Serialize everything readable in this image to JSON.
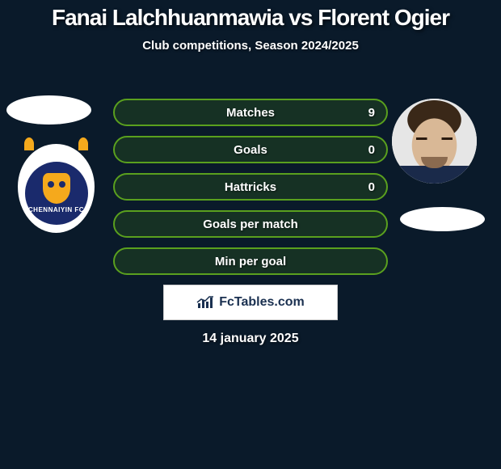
{
  "title": {
    "text": "Fanai Lalchhuanmawia vs Florent Ogier",
    "color": "#ffffff",
    "fontsize": 28
  },
  "subtitle": {
    "text": "Club competitions, Season 2024/2025",
    "color": "#ffffff",
    "fontsize": 15
  },
  "stats": {
    "border_color": "#5aa01e",
    "fill_color": "rgba(60,120,20,0.25)",
    "label_fontsize": 15,
    "value_fontsize": 15,
    "rows": [
      {
        "label": "Matches",
        "value": "9"
      },
      {
        "label": "Goals",
        "value": "0"
      },
      {
        "label": "Hattricks",
        "value": "0"
      },
      {
        "label": "Goals per match",
        "value": ""
      },
      {
        "label": "Min per goal",
        "value": ""
      }
    ]
  },
  "players": {
    "left": {
      "name": "Fanai Lalchhuanmawia",
      "club": "CHENNAIYIN FC"
    },
    "right": {
      "name": "Florent Ogier"
    }
  },
  "branding": {
    "text": "FcTables.com",
    "bg": "#ffffff",
    "text_color": "#1a3050",
    "fontsize": 16
  },
  "date": {
    "text": "14 january 2025",
    "fontsize": 16
  },
  "colors": {
    "background": "#0a1a2a",
    "club_badge_primary": "#1a2a6c",
    "club_badge_accent": "#f5a91c"
  }
}
